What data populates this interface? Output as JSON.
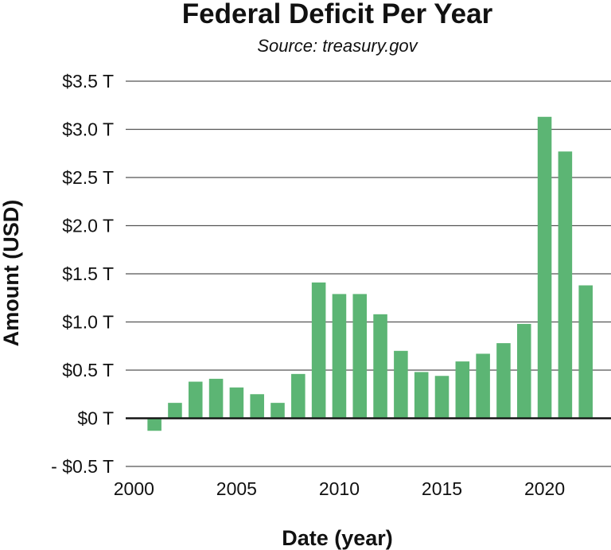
{
  "chart_data": {
    "type": "bar",
    "title": "Federal Deficit Per Year",
    "subtitle": "Source: treasury.gov",
    "xlabel": "Date (year)",
    "ylabel": "Amount (USD)",
    "x": [
      2001,
      2002,
      2003,
      2004,
      2005,
      2006,
      2007,
      2008,
      2009,
      2010,
      2011,
      2012,
      2013,
      2014,
      2015,
      2016,
      2017,
      2018,
      2019,
      2020,
      2021,
      2022
    ],
    "values": [
      -0.13,
      0.16,
      0.38,
      0.41,
      0.32,
      0.25,
      0.16,
      0.46,
      1.41,
      1.29,
      1.29,
      1.08,
      0.7,
      0.48,
      0.44,
      0.59,
      0.67,
      0.78,
      0.98,
      3.13,
      2.77,
      1.38
    ],
    "ylim": [
      -0.5,
      3.5
    ],
    "xlim": [
      1999.6,
      2023.0
    ],
    "x_ticks": [
      2000,
      2005,
      2010,
      2015,
      2020
    ],
    "x_tick_labels": [
      "2000",
      "2005",
      "2010",
      "2015",
      "2020"
    ],
    "y_ticks": [
      -0.5,
      0,
      0.5,
      1.0,
      1.5,
      2.0,
      2.5,
      3.0,
      3.5
    ],
    "y_tick_labels": [
      "- $0.5 T",
      "$0 T",
      "$0.5 T",
      "$1.0 T",
      "$1.5 T",
      "$2.0 T",
      "$2.5 T",
      "$3.0 T",
      "$3.5 T"
    ],
    "grid": true,
    "legend": false,
    "bar_color": "#5cb574"
  }
}
